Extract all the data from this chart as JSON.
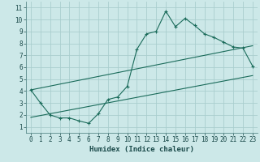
{
  "xlabel": "Humidex (Indice chaleur)",
  "bg_color": "#cce8e8",
  "line_color": "#1a6b5a",
  "grid_color": "#aacece",
  "xlim": [
    -0.5,
    23.5
  ],
  "ylim": [
    0.5,
    11.5
  ],
  "xticks": [
    0,
    1,
    2,
    3,
    4,
    5,
    6,
    7,
    8,
    9,
    10,
    11,
    12,
    13,
    14,
    15,
    16,
    17,
    18,
    19,
    20,
    21,
    22,
    23
  ],
  "yticks": [
    1,
    2,
    3,
    4,
    5,
    6,
    7,
    8,
    9,
    10,
    11
  ],
  "main_x": [
    0,
    1,
    2,
    3,
    4,
    5,
    6,
    7,
    8,
    9,
    10,
    11,
    12,
    13,
    14,
    15,
    16,
    17,
    18,
    19,
    20,
    21,
    22,
    23
  ],
  "main_y": [
    4.1,
    3.0,
    2.0,
    1.75,
    1.75,
    1.5,
    1.3,
    2.1,
    3.3,
    3.5,
    4.4,
    7.5,
    8.8,
    9.0,
    10.7,
    9.4,
    10.1,
    9.5,
    8.8,
    8.5,
    8.1,
    7.7,
    7.6,
    6.1
  ],
  "line1_x": [
    0,
    23
  ],
  "line1_y": [
    1.8,
    5.3
  ],
  "line2_x": [
    0,
    23
  ],
  "line2_y": [
    4.1,
    7.8
  ],
  "tick_font_size": 5.5,
  "xlabel_font_size": 6.5
}
